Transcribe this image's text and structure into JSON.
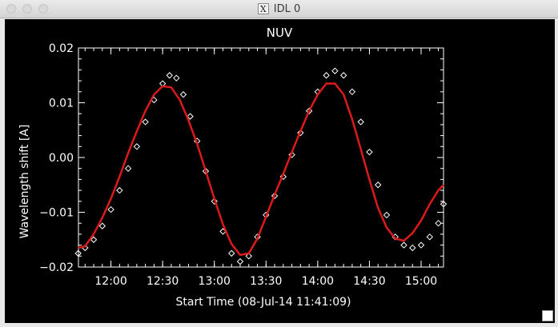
{
  "window": {
    "title": "IDL 0"
  },
  "chart_data": {
    "type": "scatter",
    "title": "NUV",
    "xlabel": "Start Time (08-Jul-14 11:41:09)",
    "ylabel": "Wavelength shift [A]",
    "xlim": [
      "11:41:09",
      "15:13:00"
    ],
    "ylim": [
      -0.02,
      0.02
    ],
    "x_ticks": [
      "12:00",
      "12:30",
      "13:00",
      "13:30",
      "14:00",
      "14:30",
      "15:00"
    ],
    "y_ticks": [
      "0.02",
      "0.01",
      "0.00",
      "−0.01",
      "−0.02"
    ],
    "y_tick_values": [
      0.02,
      0.01,
      0.0,
      -0.01,
      -0.02
    ],
    "series": [
      {
        "marker": "diamond-outline",
        "color": "#ffffff",
        "x": [
          "11:41",
          "11:45",
          "11:50",
          "11:55",
          "12:00",
          "12:05",
          "12:10",
          "12:15",
          "12:20",
          "12:25",
          "12:30",
          "12:34",
          "12:38",
          "12:42",
          "12:46",
          "12:50",
          "12:55",
          "13:00",
          "13:05",
          "13:10",
          "13:15",
          "13:20",
          "13:25",
          "13:30",
          "13:35",
          "13:40",
          "13:45",
          "13:50",
          "13:55",
          "14:00",
          "14:05",
          "14:10",
          "14:15",
          "14:20",
          "14:25",
          "14:30",
          "14:35",
          "14:40",
          "14:45",
          "14:50",
          "14:55",
          "15:00",
          "15:05",
          "15:10",
          "15:13"
        ],
        "values": [
          -0.0175,
          -0.0165,
          -0.015,
          -0.0125,
          -0.0095,
          -0.006,
          -0.002,
          0.002,
          0.0065,
          0.0105,
          0.0135,
          0.015,
          0.0145,
          0.0115,
          0.0075,
          0.003,
          -0.0025,
          -0.008,
          -0.0135,
          -0.0175,
          -0.019,
          -0.018,
          -0.0145,
          -0.0105,
          -0.007,
          -0.0035,
          0.0005,
          0.0045,
          0.0085,
          0.012,
          0.015,
          0.0158,
          0.015,
          0.012,
          0.0065,
          0.001,
          -0.005,
          -0.0105,
          -0.0145,
          -0.016,
          -0.0165,
          -0.016,
          -0.0145,
          -0.012,
          -0.0085
        ]
      },
      {
        "marker": "line",
        "color": "#dd1a1a",
        "x": [
          "11:41",
          "11:45",
          "11:50",
          "11:55",
          "12:00",
          "12:05",
          "12:10",
          "12:15",
          "12:20",
          "12:25",
          "12:30",
          "12:35",
          "12:40",
          "12:45",
          "12:50",
          "12:55",
          "13:00",
          "13:05",
          "13:10",
          "13:15",
          "13:20",
          "13:25",
          "13:30",
          "13:35",
          "13:40",
          "13:45",
          "13:50",
          "13:55",
          "14:00",
          "14:05",
          "14:10",
          "14:15",
          "14:20",
          "14:25",
          "14:30",
          "14:35",
          "14:40",
          "14:45",
          "14:50",
          "14:55",
          "15:00",
          "15:05",
          "15:10",
          "15:13"
        ],
        "values": [
          -0.0165,
          -0.0162,
          -0.014,
          -0.011,
          -0.0075,
          -0.0035,
          0.0008,
          0.0048,
          0.0085,
          0.0115,
          0.013,
          0.0128,
          0.0105,
          0.0068,
          0.0025,
          -0.0025,
          -0.0075,
          -0.0122,
          -0.0158,
          -0.0178,
          -0.0175,
          -0.0148,
          -0.0108,
          -0.0068,
          -0.003,
          0.001,
          0.0048,
          0.0085,
          0.0115,
          0.0135,
          0.0135,
          0.0115,
          0.007,
          0.0015,
          -0.004,
          -0.0092,
          -0.0128,
          -0.0148,
          -0.0152,
          -0.0138,
          -0.0115,
          -0.0085,
          -0.006,
          -0.005
        ]
      }
    ]
  }
}
